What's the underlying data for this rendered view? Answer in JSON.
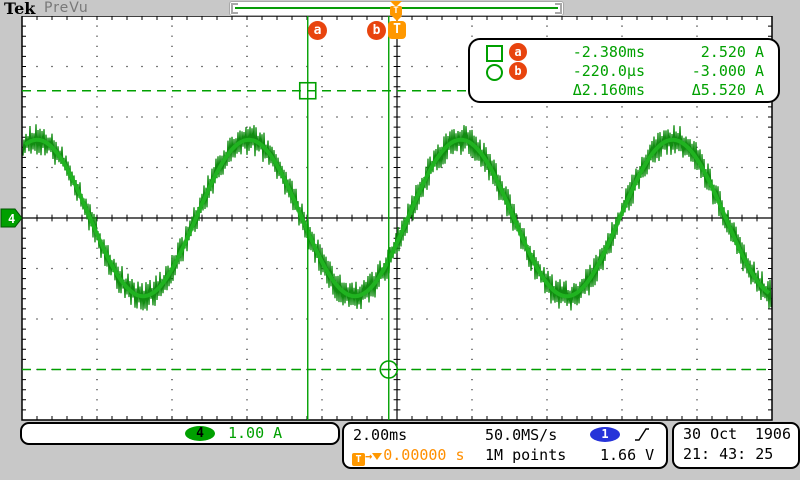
{
  "header": {
    "brand": "Tek",
    "mode": "PreVu"
  },
  "record_view": {
    "trigger_marker": "T"
  },
  "cursors": {
    "a": {
      "label": "a",
      "time": "-2.380ms",
      "amplitude": "2.520 A",
      "marker": "square"
    },
    "b": {
      "label": "b",
      "time": "-220.0µs",
      "amplitude": "-3.000 A",
      "marker": "circle"
    },
    "delta": {
      "time": "Δ2.160ms",
      "amplitude": "Δ5.520 A"
    }
  },
  "channel": {
    "number": "4",
    "vertical_scale": "1.00 A"
  },
  "acquisition": {
    "timebase": "2.00ms",
    "sample_rate": "50.0MS/s",
    "record_length": "1M points",
    "trigger_position": "0.00000 s",
    "trigger_source": "1",
    "trigger_level": "1.66 V",
    "trigger_slope": "rising"
  },
  "datetime": {
    "date": "30 Oct",
    "year": "1906",
    "time": "21: 43: 25"
  },
  "colors": {
    "waveform_green": "#22b522",
    "cursor_green": "#00a000",
    "cursor_badge_orange_red": "#e8440e",
    "trigger_orange": "#ff9800",
    "trigger_source_blue": "#2633d9",
    "channel_badge_green": "#00a000",
    "background_gray": "#c8c8c8"
  },
  "chart_data": {
    "type": "line",
    "title": "Channel 4 current waveform (sine with HF noise)",
    "xlabel": "time, 2.00 ms/div (10 divisions, trigger at center = 0 s)",
    "ylabel": "current, 1.00 A/div (8 divisions, ground at center)",
    "x_range_ms": [
      -10,
      10
    ],
    "y_range_A": [
      -4,
      4
    ],
    "grid": {
      "h_divisions": 10,
      "v_divisions": 8,
      "style": "dotted",
      "minor_per_div": 5
    },
    "series": [
      {
        "name": "CH4",
        "shape": "sine_with_hf_noise",
        "amplitude_A": 1.55,
        "period_ms": 5.65,
        "rising_zero_crossing_ms": -5.36,
        "offset_A": 0,
        "noise_min_A": 0.09,
        "noise_max_A": 0.31,
        "color": "#22b522"
      }
    ],
    "cursor_points": {
      "a": {
        "t_ms": -2.38,
        "A": 2.52
      },
      "b": {
        "t_ms": -0.22,
        "A": -3.0
      },
      "delta": {
        "t_ms": 2.16,
        "A": 5.52
      }
    }
  }
}
